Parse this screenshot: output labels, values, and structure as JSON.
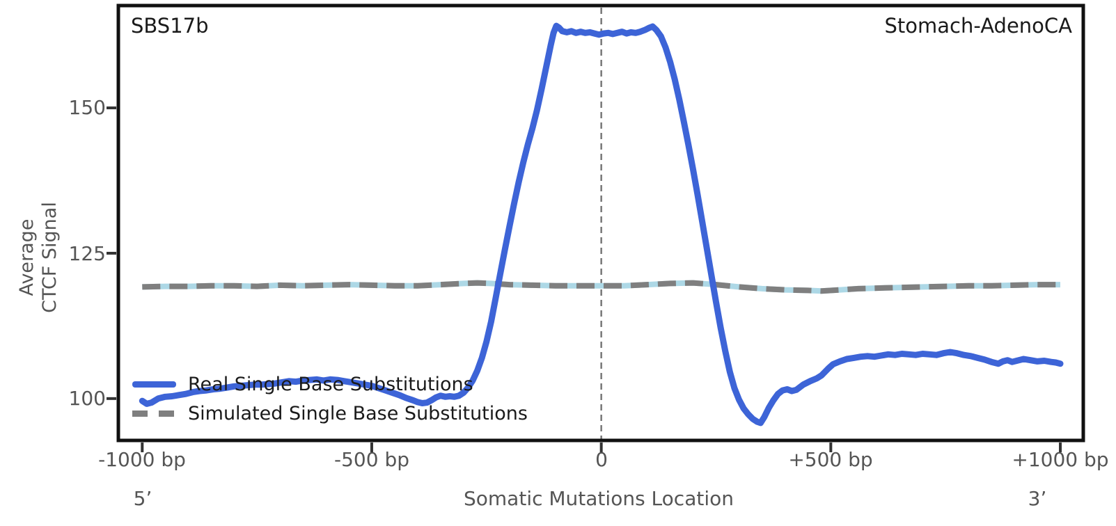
{
  "figure": {
    "background": "#ffffff",
    "signature_label": "SBS17b",
    "cancer_type_label": "Stomach-AdenoCA"
  },
  "legend": {
    "position": "lower left",
    "items": [
      {
        "label": "Real Single Base Substitutions",
        "color": "#3D64D7",
        "line_style": "solid"
      },
      {
        "label": "Simulated Single Base Substitutions",
        "color": "#7F7F7F",
        "line_style": "dashed",
        "underlay_color": "#ADD8E6"
      }
    ]
  },
  "chart_data": {
    "type": "line",
    "title": "",
    "xlabel": "Somatic Mutations Location",
    "ylabel": "Average CTCF Signal",
    "ylabel_lines": [
      "Average",
      "CTCF Signal"
    ],
    "grid": false,
    "x_axis": {
      "range": [
        -1052,
        1050
      ],
      "unit": "bp",
      "left_end_label": "5’",
      "right_end_label": "3’",
      "ticks": [
        {
          "value": -1000,
          "label": "-1000 bp"
        },
        {
          "value": -500,
          "label": "-500 bp"
        },
        {
          "value": 0,
          "label": "0"
        },
        {
          "value": 500,
          "label": "+500 bp"
        },
        {
          "value": 1000,
          "label": "+1000 bp"
        }
      ]
    },
    "y_axis": {
      "range": [
        92.8,
        167.6
      ],
      "ticks": [
        {
          "value": 150,
          "label": "150"
        },
        {
          "value": 125,
          "label": "125"
        },
        {
          "value": 100,
          "label": "100"
        }
      ]
    },
    "zero_line": {
      "x": 0,
      "color": "#777777",
      "style": "dashed"
    },
    "series": [
      {
        "name": "Real Single Base Substitutions",
        "style": "solid",
        "color": "#3D64D7",
        "width": 9,
        "points": [
          [
            -1000,
            99.6
          ],
          [
            -990,
            99.1
          ],
          [
            -980,
            99.3
          ],
          [
            -965,
            100.0
          ],
          [
            -950,
            100.3
          ],
          [
            -935,
            100.4
          ],
          [
            -920,
            100.6
          ],
          [
            -905,
            100.8
          ],
          [
            -890,
            101.1
          ],
          [
            -875,
            101.3
          ],
          [
            -860,
            101.4
          ],
          [
            -845,
            101.6
          ],
          [
            -830,
            101.7
          ],
          [
            -815,
            101.9
          ],
          [
            -800,
            102.1
          ],
          [
            -785,
            102.2
          ],
          [
            -770,
            102.3
          ],
          [
            -755,
            102.4
          ],
          [
            -740,
            102.4
          ],
          [
            -725,
            102.5
          ],
          [
            -710,
            102.6
          ],
          [
            -695,
            102.8
          ],
          [
            -680,
            103.0
          ],
          [
            -665,
            102.9
          ],
          [
            -650,
            103.1
          ],
          [
            -635,
            103.2
          ],
          [
            -620,
            103.3
          ],
          [
            -605,
            103.1
          ],
          [
            -590,
            103.3
          ],
          [
            -575,
            103.2
          ],
          [
            -560,
            103.0
          ],
          [
            -545,
            102.8
          ],
          [
            -530,
            102.6
          ],
          [
            -515,
            102.4
          ],
          [
            -500,
            102.2
          ],
          [
            -485,
            101.8
          ],
          [
            -470,
            101.4
          ],
          [
            -455,
            101.0
          ],
          [
            -440,
            100.6
          ],
          [
            -425,
            100.1
          ],
          [
            -410,
            99.7
          ],
          [
            -400,
            99.4
          ],
          [
            -390,
            99.2
          ],
          [
            -380,
            99.3
          ],
          [
            -370,
            99.7
          ],
          [
            -360,
            100.2
          ],
          [
            -350,
            100.5
          ],
          [
            -340,
            100.3
          ],
          [
            -330,
            100.4
          ],
          [
            -320,
            100.3
          ],
          [
            -310,
            100.5
          ],
          [
            -300,
            101.0
          ],
          [
            -290,
            101.9
          ],
          [
            -280,
            103.1
          ],
          [
            -270,
            104.8
          ],
          [
            -260,
            107.0
          ],
          [
            -250,
            109.8
          ],
          [
            -240,
            113.2
          ],
          [
            -230,
            117.3
          ],
          [
            -220,
            121.5
          ],
          [
            -210,
            125.6
          ],
          [
            -200,
            129.6
          ],
          [
            -190,
            133.5
          ],
          [
            -180,
            137.2
          ],
          [
            -170,
            140.6
          ],
          [
            -160,
            143.7
          ],
          [
            -150,
            146.5
          ],
          [
            -140,
            149.6
          ],
          [
            -130,
            153.2
          ],
          [
            -120,
            157.0
          ],
          [
            -110,
            160.8
          ],
          [
            -104,
            162.9
          ],
          [
            -98,
            164.1
          ],
          [
            -92,
            163.8
          ],
          [
            -85,
            163.2
          ],
          [
            -75,
            163.0
          ],
          [
            -65,
            163.2
          ],
          [
            -55,
            162.9
          ],
          [
            -45,
            163.1
          ],
          [
            -35,
            162.9
          ],
          [
            -25,
            163.0
          ],
          [
            -15,
            162.8
          ],
          [
            -5,
            162.6
          ],
          [
            5,
            162.8
          ],
          [
            15,
            162.9
          ],
          [
            25,
            162.7
          ],
          [
            35,
            162.9
          ],
          [
            45,
            163.1
          ],
          [
            55,
            162.8
          ],
          [
            65,
            163.0
          ],
          [
            75,
            162.9
          ],
          [
            85,
            163.1
          ],
          [
            95,
            163.4
          ],
          [
            105,
            163.8
          ],
          [
            112,
            164.0
          ],
          [
            120,
            163.4
          ],
          [
            130,
            162.3
          ],
          [
            140,
            160.4
          ],
          [
            150,
            157.9
          ],
          [
            160,
            154.9
          ],
          [
            170,
            151.4
          ],
          [
            180,
            147.6
          ],
          [
            190,
            143.6
          ],
          [
            200,
            139.4
          ],
          [
            210,
            135.0
          ],
          [
            220,
            130.4
          ],
          [
            230,
            125.8
          ],
          [
            240,
            121.2
          ],
          [
            250,
            116.6
          ],
          [
            260,
            112.2
          ],
          [
            270,
            108.2
          ],
          [
            280,
            104.6
          ],
          [
            290,
            101.8
          ],
          [
            300,
            99.8
          ],
          [
            310,
            98.3
          ],
          [
            320,
            97.3
          ],
          [
            330,
            96.5
          ],
          [
            340,
            96.0
          ],
          [
            347,
            95.8
          ],
          [
            355,
            96.8
          ],
          [
            365,
            98.4
          ],
          [
            375,
            99.7
          ],
          [
            385,
            100.8
          ],
          [
            395,
            101.4
          ],
          [
            405,
            101.6
          ],
          [
            415,
            101.3
          ],
          [
            425,
            101.5
          ],
          [
            440,
            102.4
          ],
          [
            455,
            103.0
          ],
          [
            470,
            103.5
          ],
          [
            480,
            104.0
          ],
          [
            495,
            105.2
          ],
          [
            505,
            105.9
          ],
          [
            520,
            106.4
          ],
          [
            535,
            106.8
          ],
          [
            550,
            107.0
          ],
          [
            565,
            107.2
          ],
          [
            580,
            107.3
          ],
          [
            595,
            107.2
          ],
          [
            610,
            107.4
          ],
          [
            625,
            107.6
          ],
          [
            640,
            107.5
          ],
          [
            655,
            107.7
          ],
          [
            670,
            107.6
          ],
          [
            685,
            107.5
          ],
          [
            700,
            107.7
          ],
          [
            715,
            107.6
          ],
          [
            730,
            107.5
          ],
          [
            745,
            107.8
          ],
          [
            760,
            108.0
          ],
          [
            775,
            107.8
          ],
          [
            790,
            107.5
          ],
          [
            805,
            107.3
          ],
          [
            820,
            107.0
          ],
          [
            835,
            106.7
          ],
          [
            850,
            106.3
          ],
          [
            865,
            106.0
          ],
          [
            875,
            106.4
          ],
          [
            885,
            106.6
          ],
          [
            895,
            106.3
          ],
          [
            905,
            106.5
          ],
          [
            920,
            106.8
          ],
          [
            935,
            106.6
          ],
          [
            950,
            106.4
          ],
          [
            965,
            106.5
          ],
          [
            980,
            106.3
          ],
          [
            990,
            106.2
          ],
          [
            1000,
            106.0
          ]
        ]
      },
      {
        "name": "Simulated Single Base Substitutions",
        "style": "dashed",
        "color": "#7F7F7F",
        "underlay_color": "#ADD8E6",
        "width": 8,
        "points": [
          [
            -1000,
            119.2
          ],
          [
            -950,
            119.3
          ],
          [
            -900,
            119.3
          ],
          [
            -850,
            119.4
          ],
          [
            -800,
            119.4
          ],
          [
            -750,
            119.3
          ],
          [
            -700,
            119.5
          ],
          [
            -650,
            119.4
          ],
          [
            -600,
            119.5
          ],
          [
            -550,
            119.6
          ],
          [
            -500,
            119.5
          ],
          [
            -450,
            119.4
          ],
          [
            -400,
            119.4
          ],
          [
            -350,
            119.6
          ],
          [
            -300,
            119.8
          ],
          [
            -270,
            119.9
          ],
          [
            -240,
            119.8
          ],
          [
            -200,
            119.6
          ],
          [
            -150,
            119.5
          ],
          [
            -100,
            119.4
          ],
          [
            -50,
            119.4
          ],
          [
            0,
            119.4
          ],
          [
            50,
            119.4
          ],
          [
            100,
            119.6
          ],
          [
            150,
            119.8
          ],
          [
            200,
            119.9
          ],
          [
            250,
            119.6
          ],
          [
            300,
            119.2
          ],
          [
            350,
            118.9
          ],
          [
            400,
            118.7
          ],
          [
            450,
            118.6
          ],
          [
            480,
            118.5
          ],
          [
            520,
            118.7
          ],
          [
            560,
            118.9
          ],
          [
            600,
            119.0
          ],
          [
            650,
            119.1
          ],
          [
            700,
            119.2
          ],
          [
            750,
            119.3
          ],
          [
            800,
            119.4
          ],
          [
            850,
            119.4
          ],
          [
            900,
            119.5
          ],
          [
            950,
            119.6
          ],
          [
            1000,
            119.6
          ]
        ]
      }
    ]
  }
}
